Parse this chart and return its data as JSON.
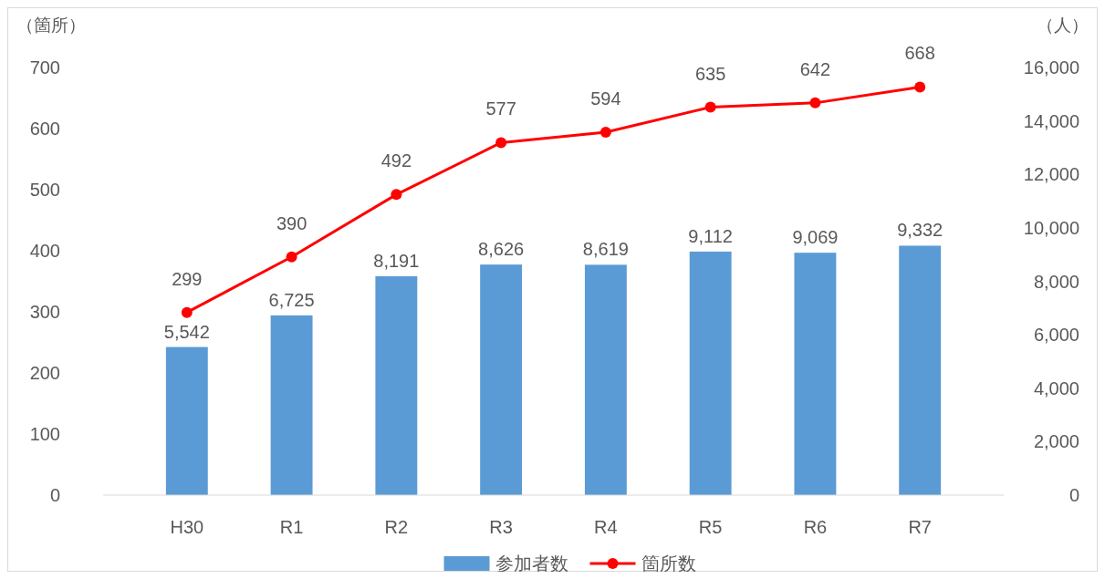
{
  "chart_data": {
    "type": "bar",
    "ylabel": "（箇所）",
    "y2label": "（人）",
    "categories": [
      "H30",
      "R1",
      "R2",
      "R3",
      "R4",
      "R5",
      "R6",
      "R7"
    ],
    "series": [
      {
        "name": "参加者数",
        "axis": "y2",
        "color": "#5b9bd5",
        "values": [
          5542,
          6725,
          8191,
          8626,
          8619,
          9112,
          9069,
          9332
        ],
        "value_labels": [
          "5,542",
          "6,725",
          "8,191",
          "8,626",
          "8,619",
          "9,112",
          "9,069",
          "9,332"
        ]
      },
      {
        "name": "箇所数",
        "type": "line",
        "color": "#ff0000",
        "values": [
          299,
          390,
          492,
          577,
          594,
          635,
          642,
          668
        ]
      }
    ],
    "ylim": [
      0,
      700
    ],
    "yticks": [
      0,
      100,
      200,
      300,
      400,
      500,
      600,
      700
    ],
    "y2lim": [
      0,
      16000
    ],
    "y2ticks": [
      0,
      {
        "value": 2000,
        "label": "2,000"
      },
      {
        "value": 4000,
        "label": "4,000"
      },
      {
        "value": 6000,
        "label": "6,000"
      },
      {
        "value": 8000,
        "label": "8,000"
      },
      {
        "value": 10000,
        "label": "10,000"
      },
      {
        "value": 12000,
        "label": "12,000"
      },
      {
        "value": 14000,
        "label": "14,000"
      },
      {
        "value": 16000,
        "label": "16,000"
      }
    ],
    "data_labels": true,
    "marker": "circle",
    "line_style": "solid",
    "legend": "bottom",
    "grid": false
  }
}
